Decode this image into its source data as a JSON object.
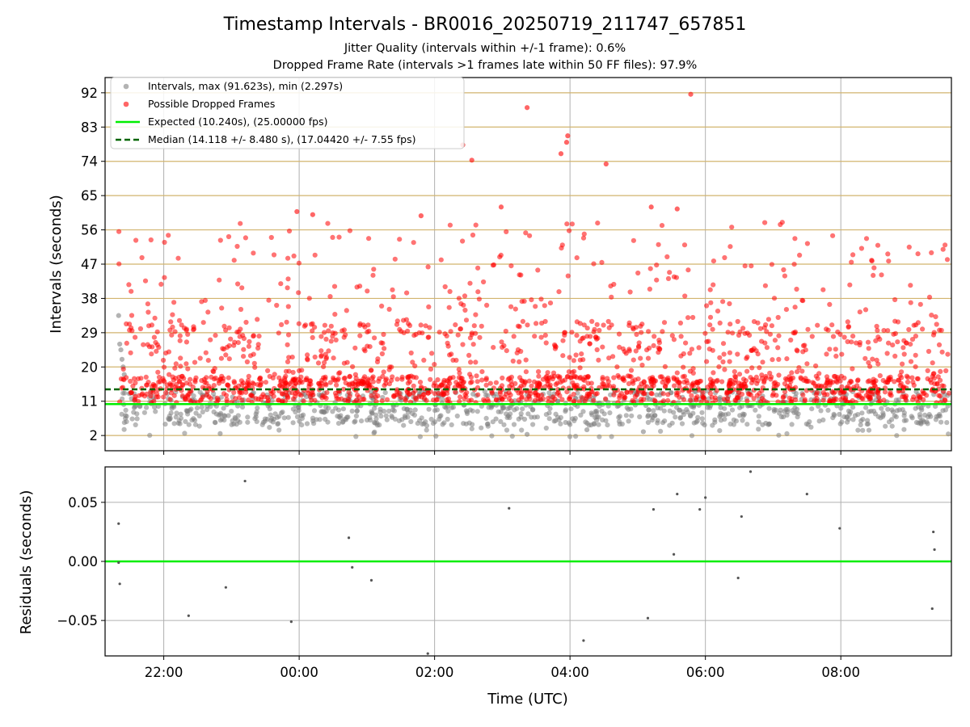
{
  "header": {
    "title": "Timestamp Intervals - BR0016_20250719_211747_657851",
    "subtitle_1": "Jitter Quality (intervals within +/-1 frame): 0.6%",
    "subtitle_2": "Dropped Frame Rate (intervals >1 frames late within 50 FF files): 97.9%"
  },
  "colors": {
    "interval_points": "#808080",
    "dropped_points": "#ff0000",
    "expected_line": "#00ee00",
    "median_line": "#006400",
    "hgrid": "#d2b46e",
    "vgrid": "#b0b0b0"
  },
  "chart_data": [
    {
      "type": "scatter",
      "xlabel": "",
      "ylabel": "Intervals (seconds)",
      "xlim": [
        "21:08",
        "09:38"
      ],
      "ylim": [
        -2,
        96
      ],
      "y_ticks": [
        "2",
        "11",
        "20",
        "29",
        "38",
        "47",
        "56",
        "65",
        "74",
        "83",
        "92"
      ],
      "grid": "horizontal and vertical",
      "legend_position": "top-left",
      "legend": [
        "Intervals, max (91.623s), min (2.297s)",
        "Possible Dropped Frames",
        "Expected (10.240s), (25.00000 fps)",
        "Median (14.118 +/- 8.480 s), (17.04420 +/- 7.55 fps)"
      ],
      "expected_interval": 10.24,
      "median_interval": 14.118,
      "max_interval": 91.623,
      "min_interval": 2.297,
      "x_range": [
        "21:20",
        "09:36"
      ],
      "series": [
        {
          "name": "Intervals, max (91.623s), min (2.297s)",
          "points_approx": 2100,
          "notable_points": [
            {
              "x": "21:20",
              "y": 33.5
            },
            {
              "x": "21:21",
              "y": 26
            },
            {
              "x": "21:22",
              "y": 24.5
            },
            {
              "x": "21:23",
              "y": 22
            },
            {
              "x": "21:24",
              "y": 20
            },
            {
              "x": "21:25",
              "y": 18
            },
            {
              "x": "22:50",
              "y": 2.5
            },
            {
              "x": "03:22",
              "y": 2.3
            },
            {
              "x": "04:15",
              "y": 3.5
            },
            {
              "x": "05:05",
              "y": 3.0
            }
          ]
        },
        {
          "name": "Possible Dropped Frames",
          "points_approx": 2050,
          "notable_points": [
            {
              "x": "05:47",
              "y": 91.6
            },
            {
              "x": "03:22",
              "y": 88.1
            },
            {
              "x": "03:58",
              "y": 80.7
            },
            {
              "x": "03:57",
              "y": 79.0
            },
            {
              "x": "02:25",
              "y": 78.3
            },
            {
              "x": "03:52",
              "y": 76.0
            },
            {
              "x": "02:33",
              "y": 74.3
            },
            {
              "x": "04:32",
              "y": 73.3
            },
            {
              "x": "02:59",
              "y": 62.0
            },
            {
              "x": "05:12",
              "y": 62.0
            },
            {
              "x": "05:35",
              "y": 61.5
            },
            {
              "x": "23:58",
              "y": 60.8
            },
            {
              "x": "01:48",
              "y": 59.7
            },
            {
              "x": "00:12",
              "y": 60.0
            }
          ]
        },
        {
          "name": "Expected (10.240s), (25.00000 fps)",
          "y": 10.24
        },
        {
          "name": "Median (14.118 +/- 8.480 s), (17.04420 +/- 7.55 fps)",
          "y": 14.118
        }
      ]
    },
    {
      "type": "scatter",
      "xlabel": "Time (UTC)",
      "ylabel": "Residuals (seconds)",
      "xlim": [
        "21:08",
        "09:38"
      ],
      "ylim": [
        -0.08,
        0.08
      ],
      "y_ticks": [
        "−0.05",
        "0.00",
        "0.05"
      ],
      "x_ticks": [
        "22:00",
        "00:00",
        "02:00",
        "04:00",
        "06:00",
        "08:00"
      ],
      "zero_line": 0,
      "series": [
        {
          "name": "",
          "points": [
            {
              "x": "21:20",
              "y": 0.032
            },
            {
              "x": "21:20",
              "y": -0.001
            },
            {
              "x": "21:21",
              "y": -0.019
            },
            {
              "x": "22:22",
              "y": -0.046
            },
            {
              "x": "22:55",
              "y": -0.022
            },
            {
              "x": "23:12",
              "y": 0.068
            },
            {
              "x": "23:53",
              "y": -0.051
            },
            {
              "x": "00:44",
              "y": 0.02
            },
            {
              "x": "00:47",
              "y": -0.005
            },
            {
              "x": "01:04",
              "y": -0.016
            },
            {
              "x": "01:54",
              "y": -0.078
            },
            {
              "x": "03:06",
              "y": 0.045
            },
            {
              "x": "04:12",
              "y": -0.067
            },
            {
              "x": "05:09",
              "y": -0.048
            },
            {
              "x": "05:14",
              "y": 0.044
            },
            {
              "x": "05:32",
              "y": 0.006
            },
            {
              "x": "05:35",
              "y": 0.057
            },
            {
              "x": "05:55",
              "y": 0.044
            },
            {
              "x": "06:00",
              "y": 0.054
            },
            {
              "x": "06:29",
              "y": -0.014
            },
            {
              "x": "06:32",
              "y": 0.038
            },
            {
              "x": "06:40",
              "y": 0.076
            },
            {
              "x": "07:30",
              "y": 0.057
            },
            {
              "x": "07:59",
              "y": 0.028
            },
            {
              "x": "09:21",
              "y": -0.04
            },
            {
              "x": "09:22",
              "y": 0.025
            },
            {
              "x": "09:23",
              "y": 0.01
            }
          ]
        },
        {
          "name": "",
          "y": 0
        }
      ]
    }
  ]
}
